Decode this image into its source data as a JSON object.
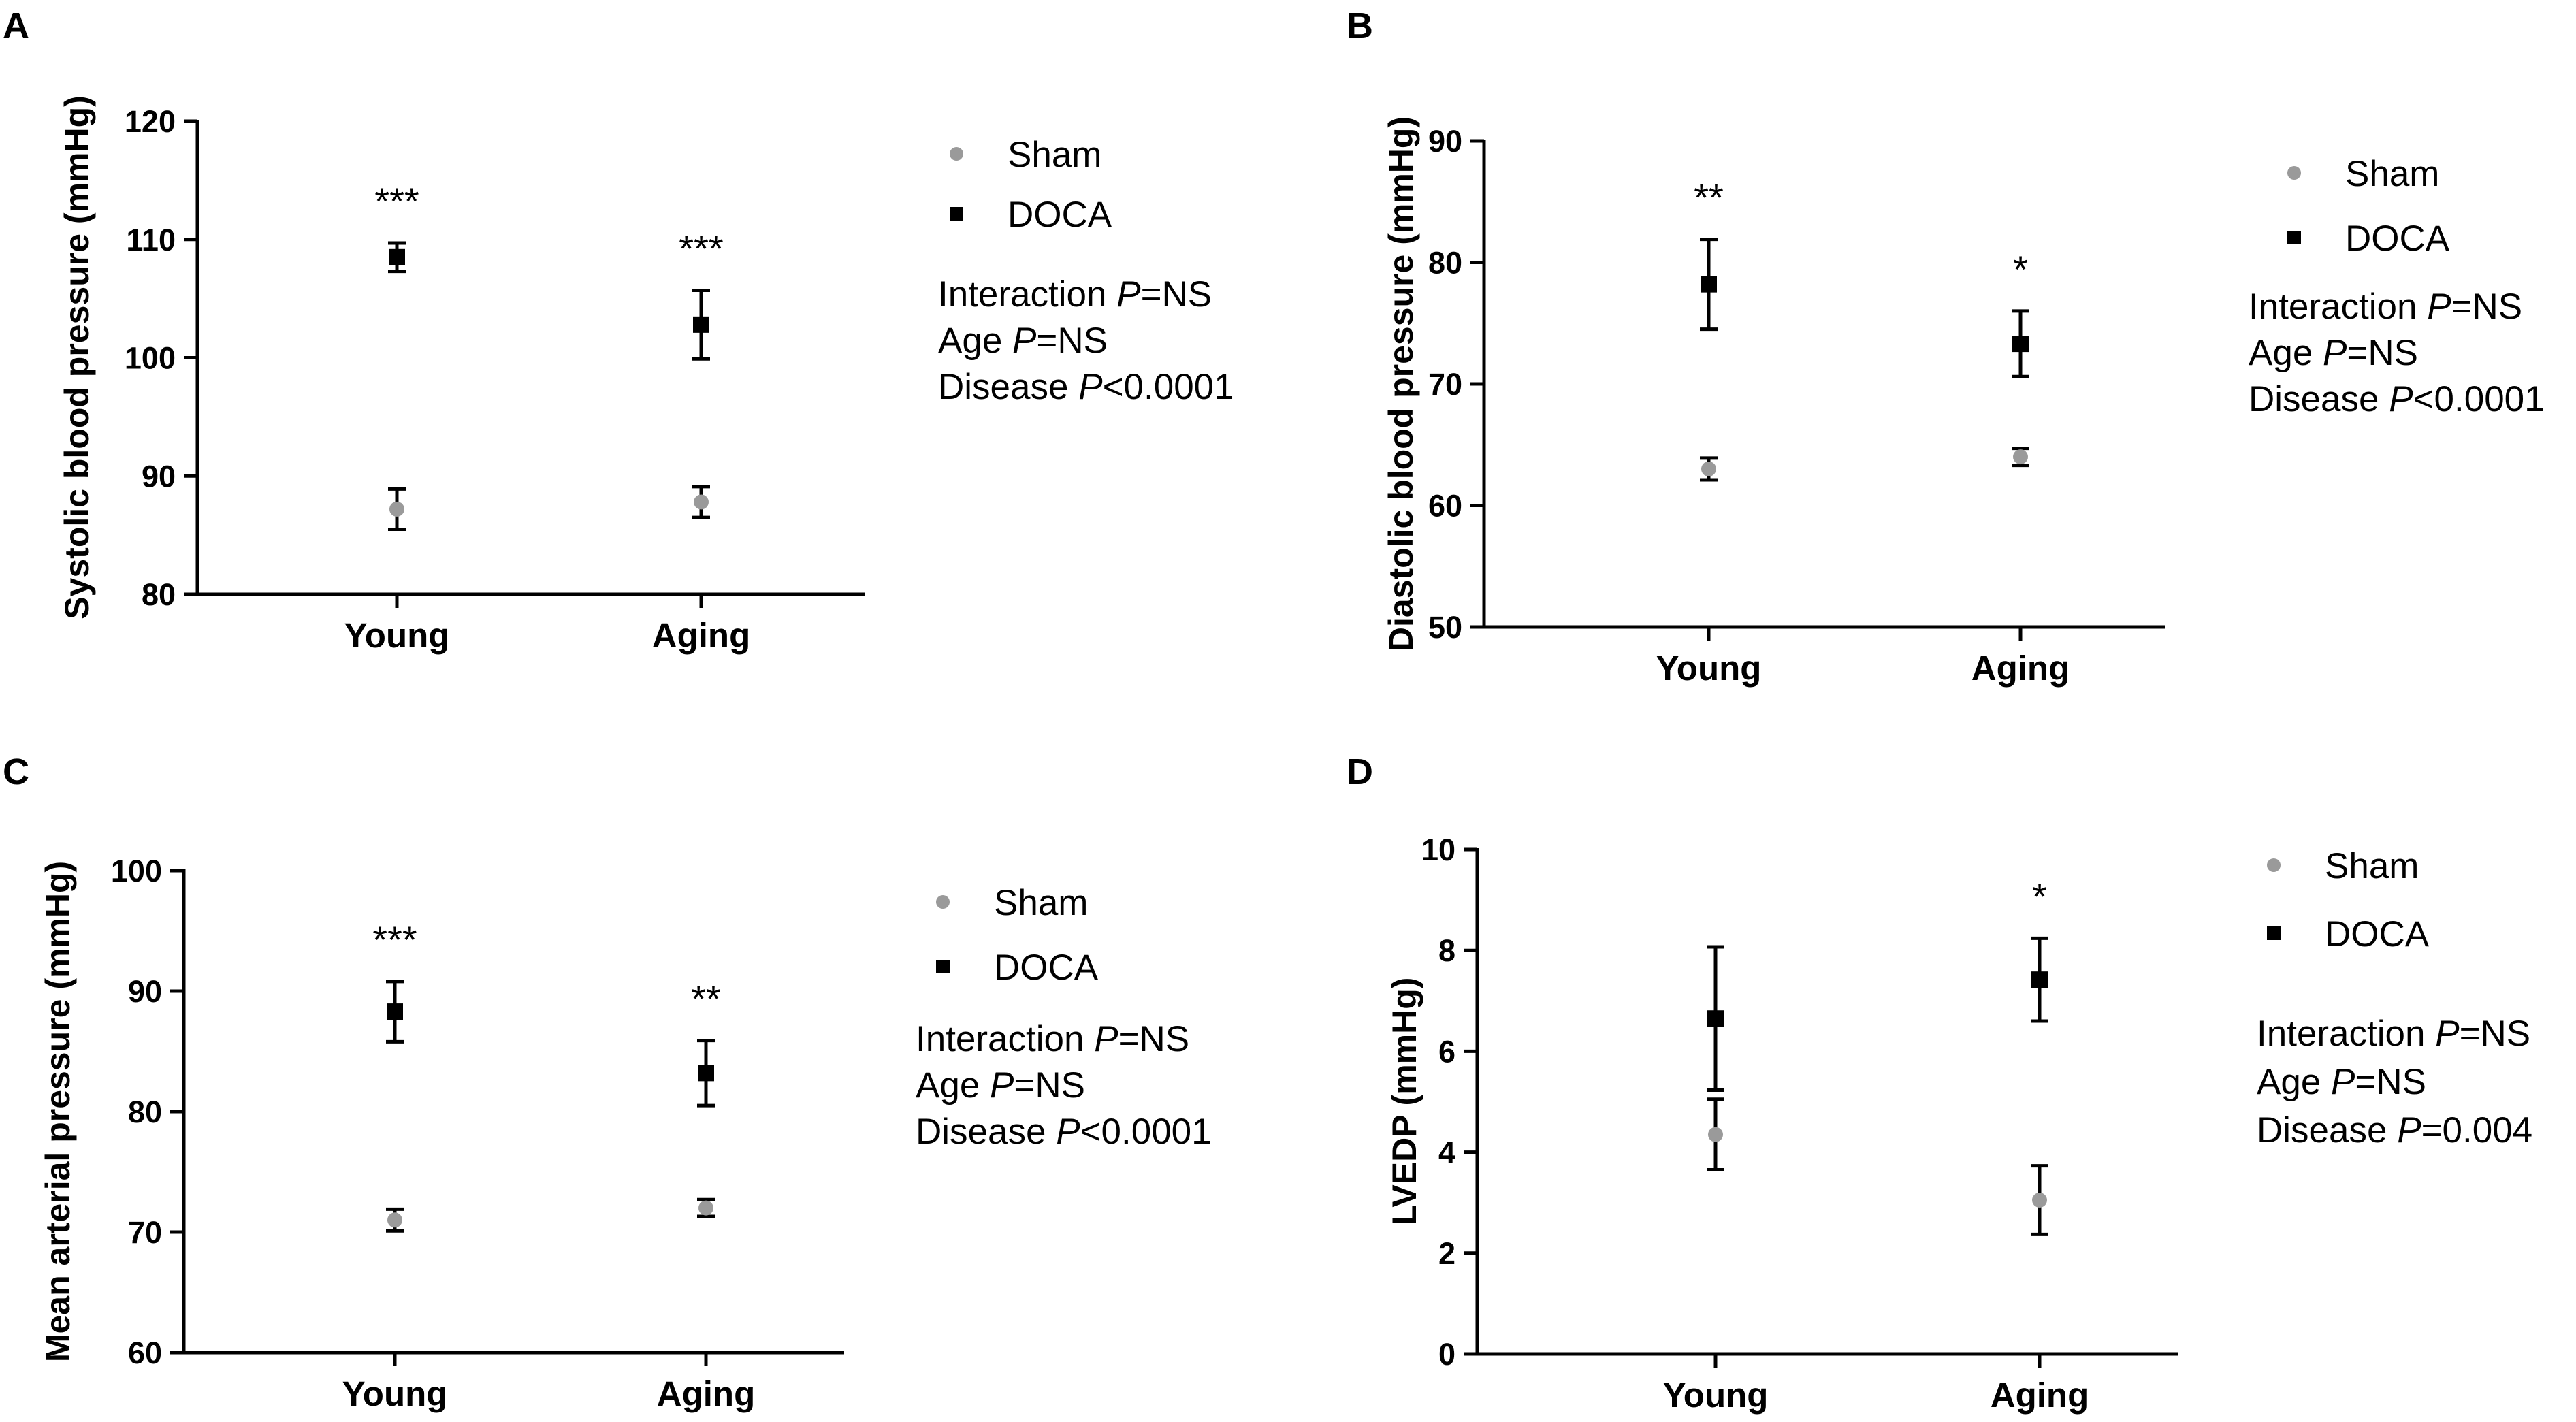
{
  "chart_data": [
    {
      "panel": "A",
      "type": "scatter",
      "title": "",
      "xlabel": "",
      "ylabel": "Systolic blood pressure (mmHg)",
      "categories": [
        "Young",
        "Aging"
      ],
      "ylim": [
        80,
        120
      ],
      "yticks": [
        80,
        90,
        100,
        110,
        120
      ],
      "series": [
        {
          "name": "Sham",
          "marker": "circle",
          "color": "#9a9a9a",
          "values": [
            87.2,
            87.8
          ],
          "errors": [
            1.7,
            1.3
          ]
        },
        {
          "name": "DOCA",
          "marker": "square",
          "color": "#000000",
          "values": [
            108.5,
            102.8
          ],
          "errors": [
            1.2,
            2.9
          ]
        }
      ],
      "significance": [
        "***",
        "***"
      ],
      "stats": [
        {
          "label": "Interaction ",
          "p": "P",
          "value": "=NS"
        },
        {
          "label": "Age ",
          "p": "P",
          "value": "=NS"
        },
        {
          "label": "Disease ",
          "p": "P",
          "value": "<0.0001"
        }
      ]
    },
    {
      "panel": "B",
      "type": "scatter",
      "title": "",
      "xlabel": "",
      "ylabel": "Diastolic blood pressure (mmHg)",
      "categories": [
        "Young",
        "Aging"
      ],
      "ylim": [
        50,
        90
      ],
      "yticks": [
        50,
        60,
        70,
        80,
        90
      ],
      "series": [
        {
          "name": "Sham",
          "marker": "circle",
          "color": "#9a9a9a",
          "values": [
            63.0,
            64.0
          ],
          "errors": [
            0.9,
            0.7
          ]
        },
        {
          "name": "DOCA",
          "marker": "square",
          "color": "#000000",
          "values": [
            78.2,
            73.3
          ],
          "errors": [
            3.7,
            2.7
          ]
        }
      ],
      "significance": [
        "**",
        "*"
      ],
      "stats": [
        {
          "label": "Interaction ",
          "p": "P",
          "value": "=NS"
        },
        {
          "label": "Age ",
          "p": "P",
          "value": "=NS"
        },
        {
          "label": "Disease ",
          "p": "P",
          "value": "<0.0001"
        }
      ]
    },
    {
      "panel": "C",
      "type": "scatter",
      "title": "",
      "xlabel": "",
      "ylabel": "Mean arterial pressure (mmHg)",
      "categories": [
        "Young",
        "Aging"
      ],
      "ylim": [
        60,
        100
      ],
      "yticks": [
        60,
        70,
        80,
        90,
        100
      ],
      "series": [
        {
          "name": "Sham",
          "marker": "circle",
          "color": "#9a9a9a",
          "values": [
            71.0,
            72.0
          ],
          "errors": [
            0.9,
            0.7
          ]
        },
        {
          "name": "DOCA",
          "marker": "square",
          "color": "#000000",
          "values": [
            88.3,
            83.2
          ],
          "errors": [
            2.5,
            2.7
          ]
        }
      ],
      "significance": [
        "***",
        "**"
      ],
      "stats": [
        {
          "label": "Interaction ",
          "p": "P",
          "value": "=NS"
        },
        {
          "label": "Age ",
          "p": "P",
          "value": "=NS"
        },
        {
          "label": "Disease ",
          "p": "P",
          "value": "<0.0001"
        }
      ]
    },
    {
      "panel": "D",
      "type": "scatter",
      "title": "",
      "xlabel": "",
      "ylabel": "LVEDP (mmHg)",
      "categories": [
        "Young",
        "Aging"
      ],
      "ylim": [
        0,
        10
      ],
      "yticks": [
        0,
        2,
        4,
        6,
        8,
        10
      ],
      "series": [
        {
          "name": "Sham",
          "marker": "circle",
          "color": "#9a9a9a",
          "values": [
            4.35,
            3.05
          ],
          "errors": [
            0.7,
            0.68
          ]
        },
        {
          "name": "DOCA",
          "marker": "square",
          "color": "#000000",
          "values": [
            6.65,
            7.42
          ],
          "errors": [
            1.42,
            0.82
          ]
        }
      ],
      "significance": [
        "",
        "*"
      ],
      "stats": [
        {
          "label": "Interaction ",
          "p": "P",
          "value": "=NS"
        },
        {
          "label": "Age ",
          "p": "P",
          "value": "=NS"
        },
        {
          "label": "Disease ",
          "p": "P",
          "value": "=0.004"
        }
      ]
    }
  ]
}
